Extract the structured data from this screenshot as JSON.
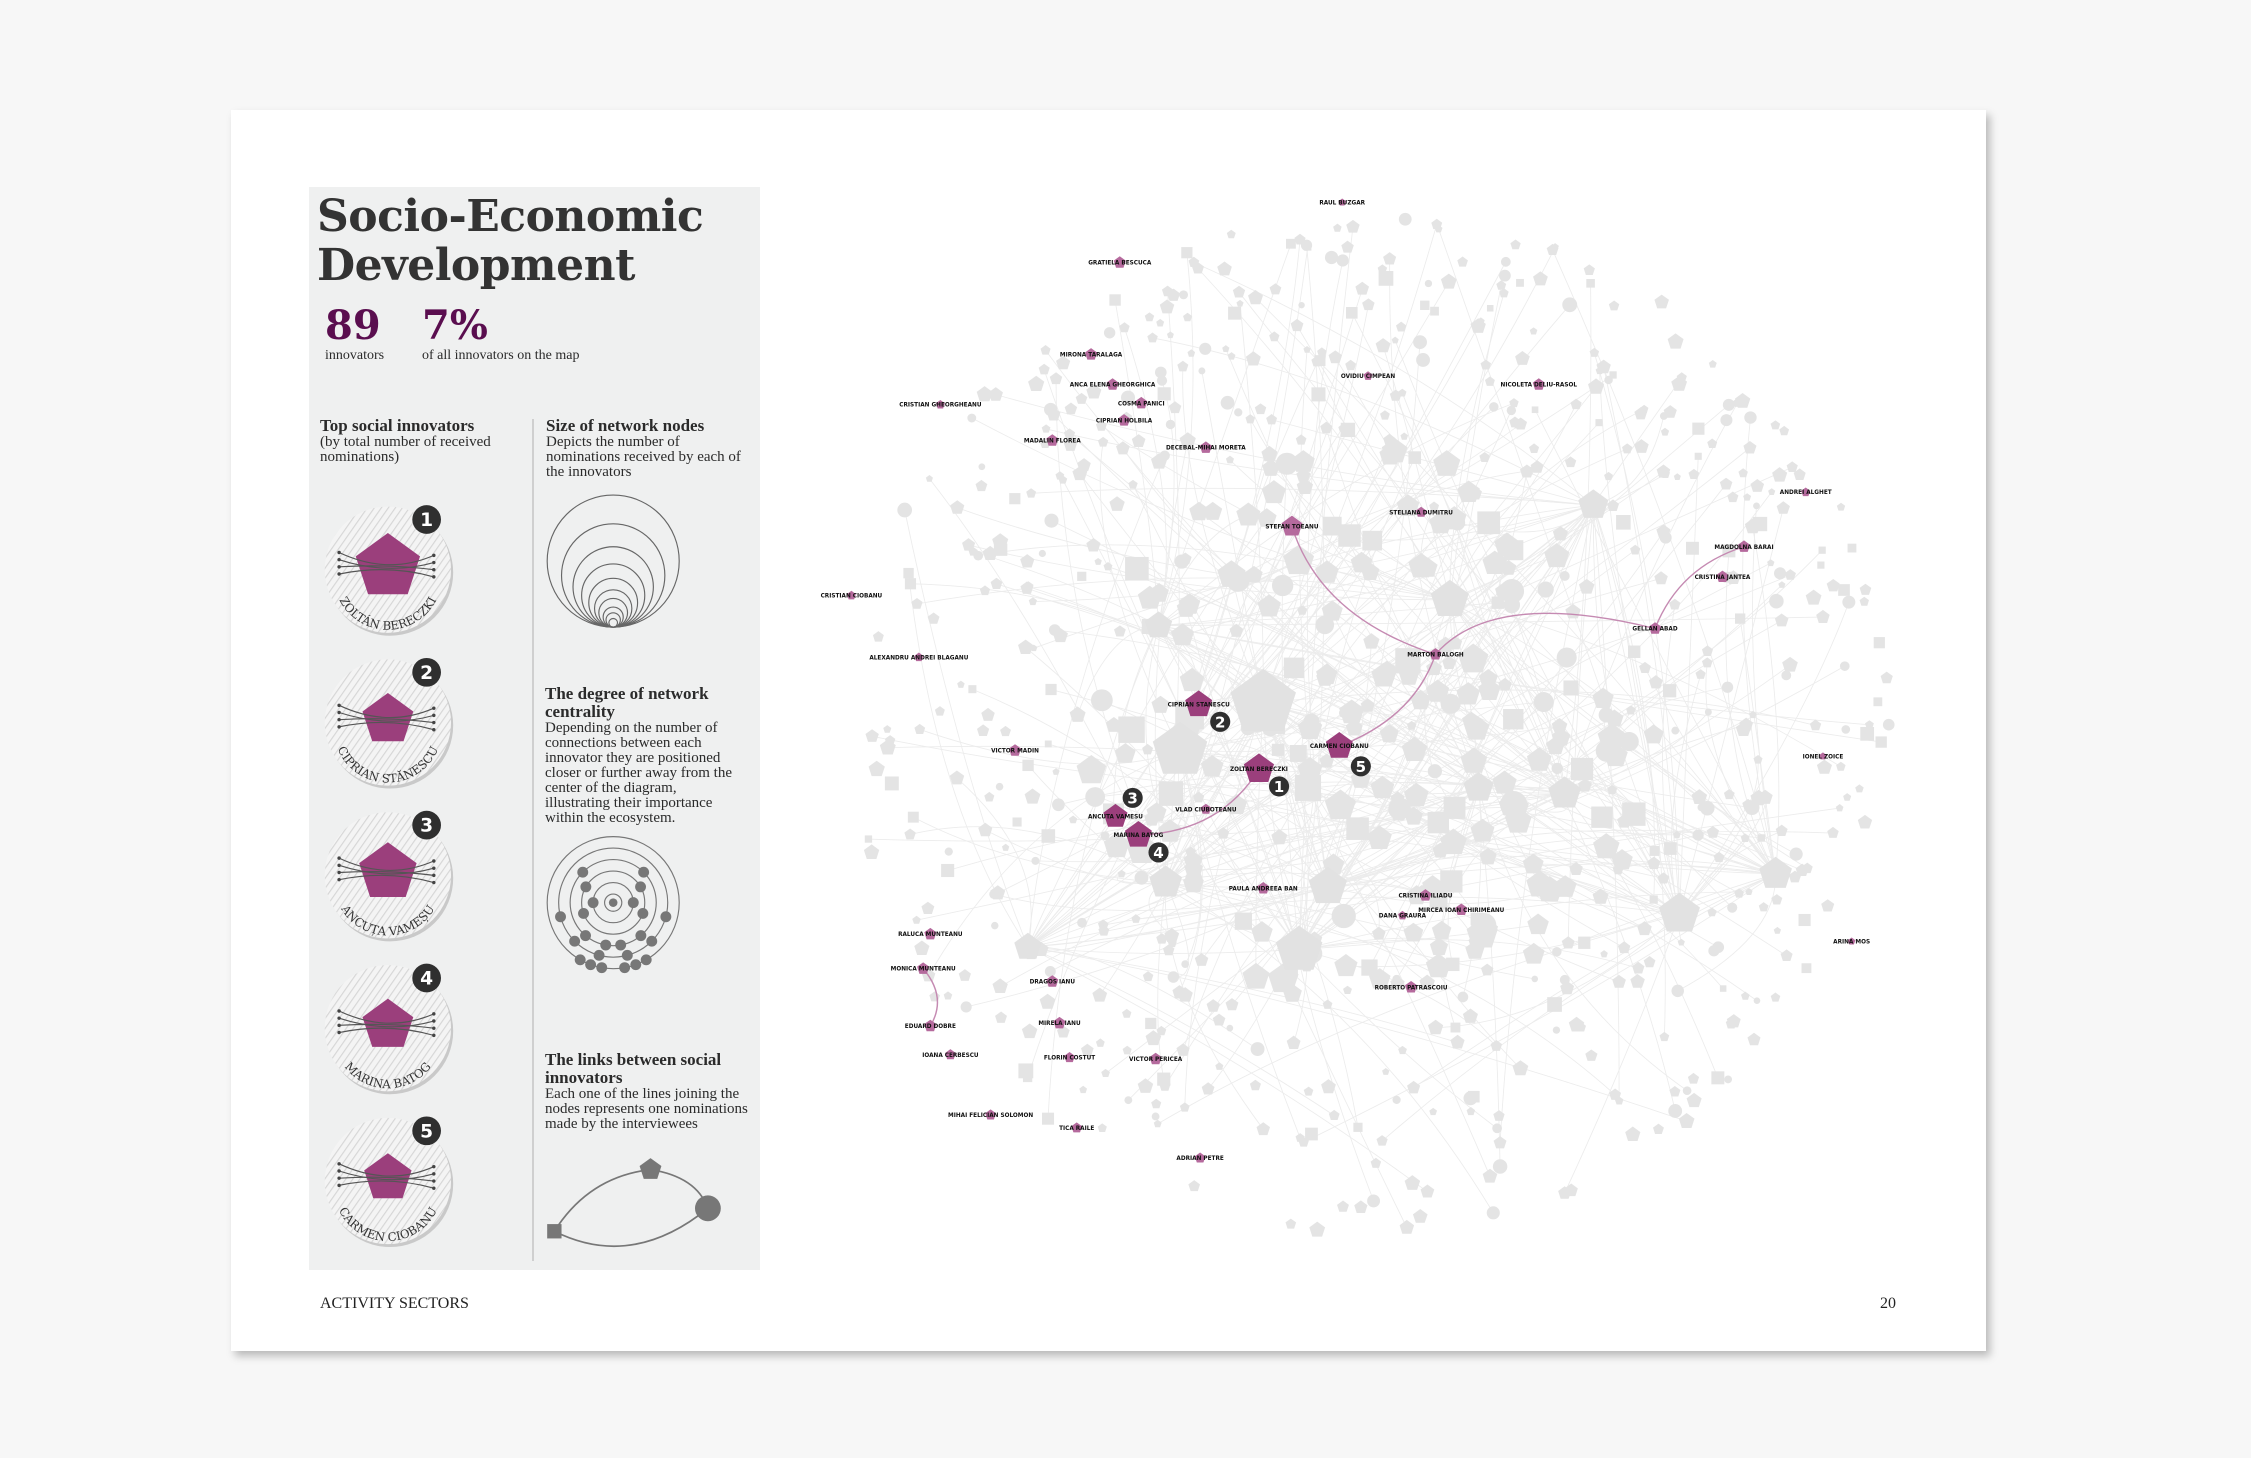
{
  "header": {
    "title_line1": "Socio-Economic",
    "title_line2": "Development"
  },
  "stats": {
    "innovators_count": "89",
    "innovators_label": "innovators",
    "share": "7%",
    "share_label": "of all innovators on the map"
  },
  "top_innovators": {
    "heading": "Top social innovators",
    "subheading": "(by total number of received nominations)",
    "items": [
      {
        "rank": "1",
        "name": "ZOLTÁN BERECZKI"
      },
      {
        "rank": "2",
        "name": "CIPRIAN STĂNESCU"
      },
      {
        "rank": "3",
        "name": "ANCUȚA VAMEȘU"
      },
      {
        "rank": "4",
        "name": "MARINA BATOG"
      },
      {
        "rank": "5",
        "name": "CARMEN CIOBANU"
      }
    ]
  },
  "legend": {
    "size": {
      "heading": "Size of network nodes",
      "text": "Depicts the number of nominations received by each of the innovators"
    },
    "centrality": {
      "heading": "The degree of network centrality",
      "text": "Depending on the number of connections between each innovator they are positioned closer or further away from the center of the diagram, illustrating their importance within the ecosystem."
    },
    "links": {
      "heading": "The links between social innovators",
      "text": "Each one of the lines joining the nodes represents one nominations made by the interviewees"
    }
  },
  "colors": {
    "accent": "#9b3f7c",
    "number": "#5a0e4f",
    "node_gray": "#e4e4e4",
    "badge": "#2f2f2f",
    "panel": "#eff0f0"
  },
  "network": {
    "nodes": [
      {
        "name": "RAUL BUZGAR"
      },
      {
        "name": "GRATIELA BESCUCA"
      },
      {
        "name": "MIRONA TARALAGA"
      },
      {
        "name": "ANCA ELENA GHEORGHICA"
      },
      {
        "name": "COSMA PANICI"
      },
      {
        "name": "CRISTIAN GHEORGHEANU"
      },
      {
        "name": "CIPRIAN HOLBILA"
      },
      {
        "name": "MADALIN FLOREA"
      },
      {
        "name": "DECEBAL-MIHAI MORETA"
      },
      {
        "name": "OVIDIU CIMPEAN"
      },
      {
        "name": "NICOLETA DELIU-RASOL"
      },
      {
        "name": "STEFAN TOEANU"
      },
      {
        "name": "STELIANA DUMITRU"
      },
      {
        "name": "ANDREI ALGHET"
      },
      {
        "name": "MAGDOLNA BARAI"
      },
      {
        "name": "CRISTINA JANTEA"
      },
      {
        "name": "GELLAN ABAD"
      },
      {
        "name": "MARTON BALOGH"
      },
      {
        "name": "CRISTIAN CIOBANU"
      },
      {
        "name": "ALEXANDRU ANDREI BLAGANU"
      },
      {
        "name": "VICTOR MADIN"
      },
      {
        "name": "CIPRIAN STANESCU",
        "rank": "2"
      },
      {
        "name": "ZOLTAN BERECZKI",
        "rank": "1"
      },
      {
        "name": "CARMEN CIOBANU",
        "rank": "5"
      },
      {
        "name": "ANCUTA VAMESU",
        "rank": "3"
      },
      {
        "name": "MARINA BATOG",
        "rank": "4"
      },
      {
        "name": "VLAD CIUBOTEANU"
      },
      {
        "name": "IONEL ZOICE"
      },
      {
        "name": "PAULA ANDREEA BAN"
      },
      {
        "name": "CRISTINA ILIADU"
      },
      {
        "name": "DANA GRAURA"
      },
      {
        "name": "MIRCEA IOAN CHIRIMEANU"
      },
      {
        "name": "ROBERTO PATRASCOIU"
      },
      {
        "name": "ARINA MOS"
      },
      {
        "name": "RALUCA MUNTEANU"
      },
      {
        "name": "MONICA MUNTEANU"
      },
      {
        "name": "EDUARD DOBRE"
      },
      {
        "name": "IOANA CERBESCU"
      },
      {
        "name": "DRAGOS IANU"
      },
      {
        "name": "MIRELA IANU"
      },
      {
        "name": "FLORIN COSTUT"
      },
      {
        "name": "VICTOR PERICEA"
      },
      {
        "name": "MIHAI FELICIAN SOLOMON"
      },
      {
        "name": "TICA RAILE"
      },
      {
        "name": "ADRIAN PETRE"
      }
    ]
  },
  "footer": {
    "section": "ACTIVITY SECTORS",
    "page_number": "20"
  }
}
